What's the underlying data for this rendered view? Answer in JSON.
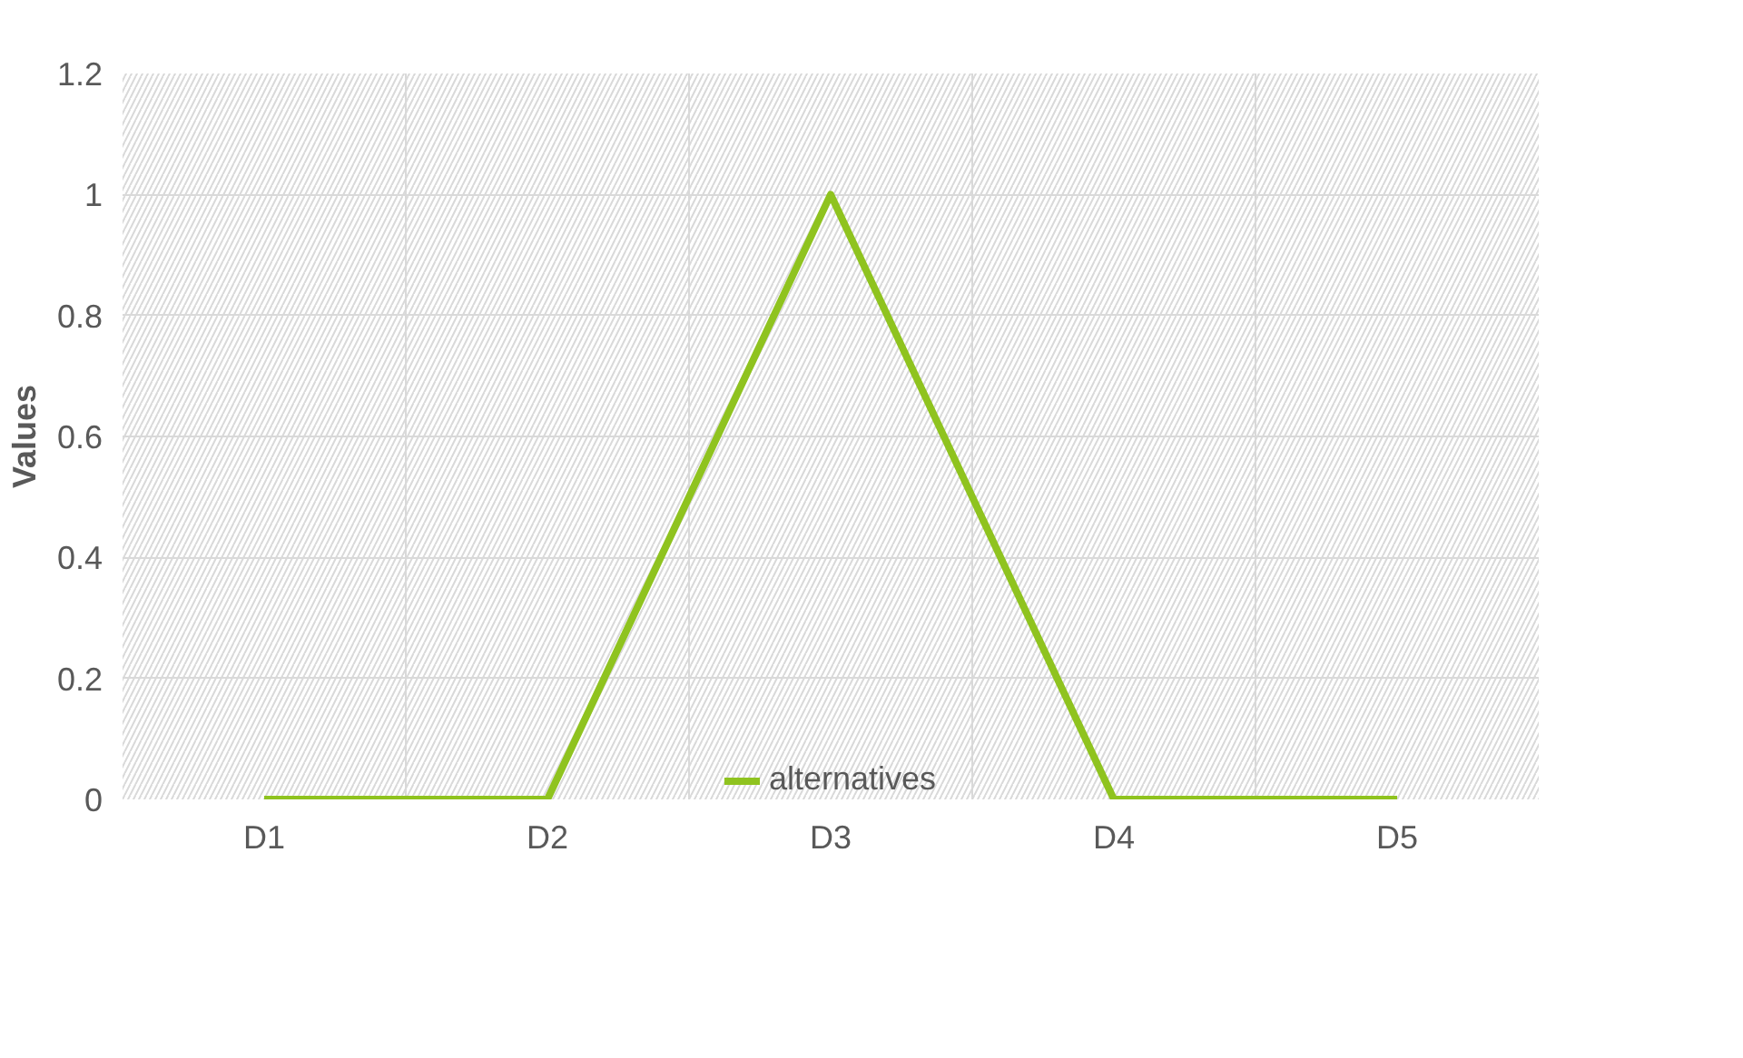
{
  "chart_data": {
    "type": "line",
    "ylabel": "Values",
    "categories": [
      "D1",
      "D2",
      "D3",
      "D4",
      "D5"
    ],
    "series": [
      {
        "name": "alternatives",
        "color": "#8fc31f",
        "values": [
          0,
          0,
          1,
          0,
          0
        ]
      }
    ],
    "ylim": [
      0,
      1.2
    ],
    "yticks": [
      0,
      0.2,
      0.4,
      0.6,
      0.8,
      1,
      {
        "value": 1.2,
        "label": "1.2"
      }
    ],
    "grid": true,
    "legend": "bottom",
    "line_style": "solid",
    "marker": "none"
  }
}
